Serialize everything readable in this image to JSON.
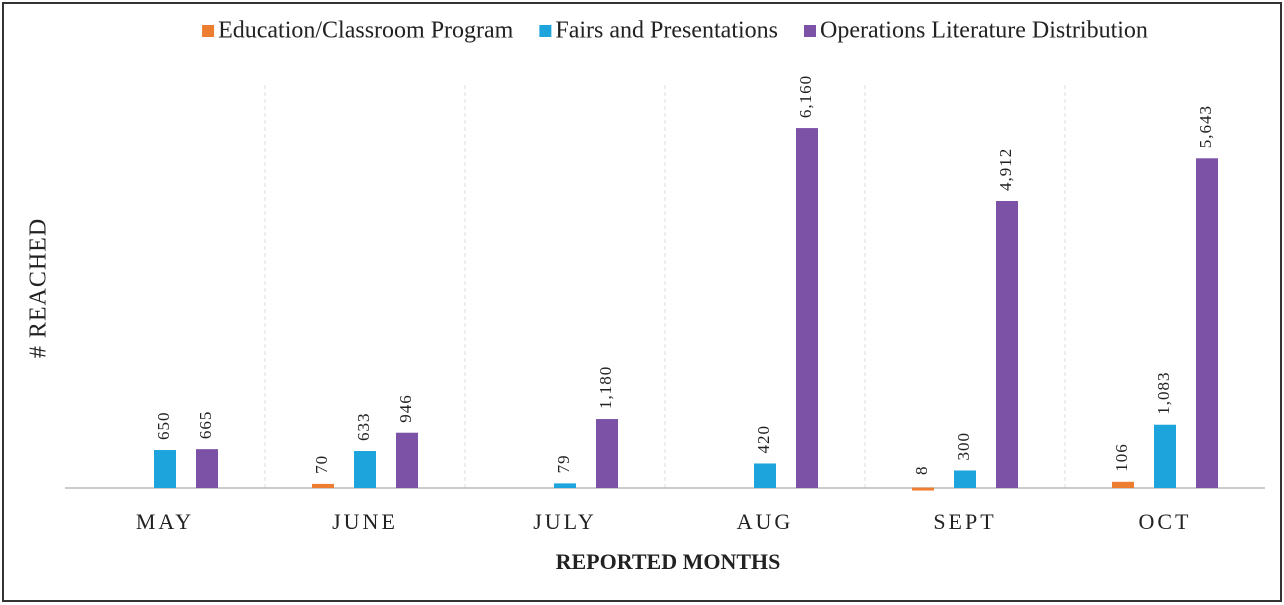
{
  "chart_data": {
    "type": "bar",
    "categories": [
      "MAY",
      "JUNE",
      "JULY",
      "AUG",
      "SEPT",
      "OCT"
    ],
    "series": [
      {
        "name": "Education/Classroom Program",
        "color": "#ed7d31",
        "values": [
          null,
          70,
          null,
          null,
          8,
          106
        ]
      },
      {
        "name": "Fairs and Presentations",
        "color": "#1ea4dd",
        "values": [
          650,
          633,
          79,
          420,
          300,
          1083
        ],
        "value_labels": [
          "650",
          "633",
          "79",
          "420",
          "300",
          "1,083"
        ]
      },
      {
        "name": "Operations Literature Distribution",
        "color": "#7b52a6",
        "values": [
          665,
          946,
          1180,
          6160,
          4912,
          5643
        ],
        "value_labels": [
          "665",
          "946",
          "1,180",
          "6,160",
          "4,912",
          "5,643"
        ]
      }
    ],
    "x_label": "REPORTED MONTHS",
    "y_label": "# REACHED",
    "ylim": [
      0,
      7000
    ],
    "legend": "top"
  }
}
